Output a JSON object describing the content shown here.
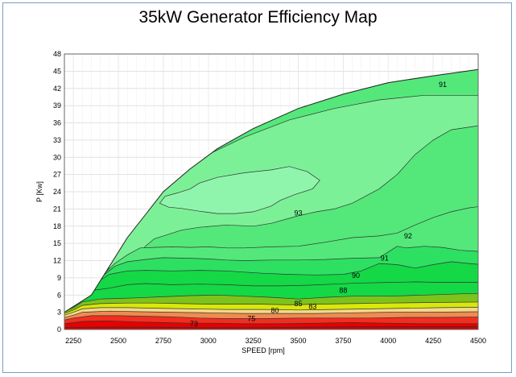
{
  "chart_data": {
    "type": "contour",
    "title": "35kW Generator Efficiency Map",
    "xlabel": "SPEED [rpm]",
    "ylabel": "P [Kw]",
    "xlim": [
      2200,
      4500
    ],
    "ylim": [
      0,
      48
    ],
    "x_ticks": [
      2250,
      2500,
      2750,
      3000,
      3250,
      3500,
      3750,
      4000,
      4250,
      4500
    ],
    "y_ticks": [
      0,
      3,
      6,
      9,
      12,
      15,
      18,
      21,
      24,
      27,
      30,
      33,
      36,
      39,
      42,
      45,
      48
    ],
    "grid": true,
    "max_power_envelope": {
      "speed": [
        2200,
        2350,
        2450,
        2550,
        2650,
        2750,
        2900,
        3050,
        3250,
        3500,
        3750,
        4000,
        4250,
        4500
      ],
      "power": [
        3,
        6,
        11,
        16,
        20,
        24,
        28,
        31.5,
        35,
        38.5,
        41,
        43,
        44.2,
        45.3
      ]
    },
    "efficiency_levels": [
      73,
      75,
      80,
      83,
      85,
      88,
      90,
      91,
      92,
      93
    ],
    "contour_labels": [
      {
        "value": "73",
        "speed": 2920,
        "power": 1
      },
      {
        "value": "75",
        "speed": 3240,
        "power": 1.9
      },
      {
        "value": "80",
        "speed": 3370,
        "power": 3.3
      },
      {
        "value": "83",
        "speed": 3580,
        "power": 4.0
      },
      {
        "value": "85",
        "speed": 3500,
        "power": 4.5
      },
      {
        "value": "88",
        "speed": 3750,
        "power": 6.8
      },
      {
        "value": "90",
        "speed": 3820,
        "power": 9.4
      },
      {
        "value": "91",
        "speed": 3980,
        "power": 12.4
      },
      {
        "value": "92",
        "speed": 4110,
        "power": 16.3
      },
      {
        "value": "93",
        "speed": 3500,
        "power": 20.3
      },
      {
        "value": "91",
        "speed": 4800,
        "power": 42.7
      }
    ],
    "colors": {
      "93": "#8ff5ad",
      "92": "#7cf096",
      "91": "#54e87a",
      "90": "#2ee062",
      "88": "#14d846",
      "85": "#7ec31c",
      "83": "#d8e80a",
      "80": "#f5d884",
      "75": "#f08a50",
      "73": "#f22e20",
      "low": "#e80000"
    }
  }
}
